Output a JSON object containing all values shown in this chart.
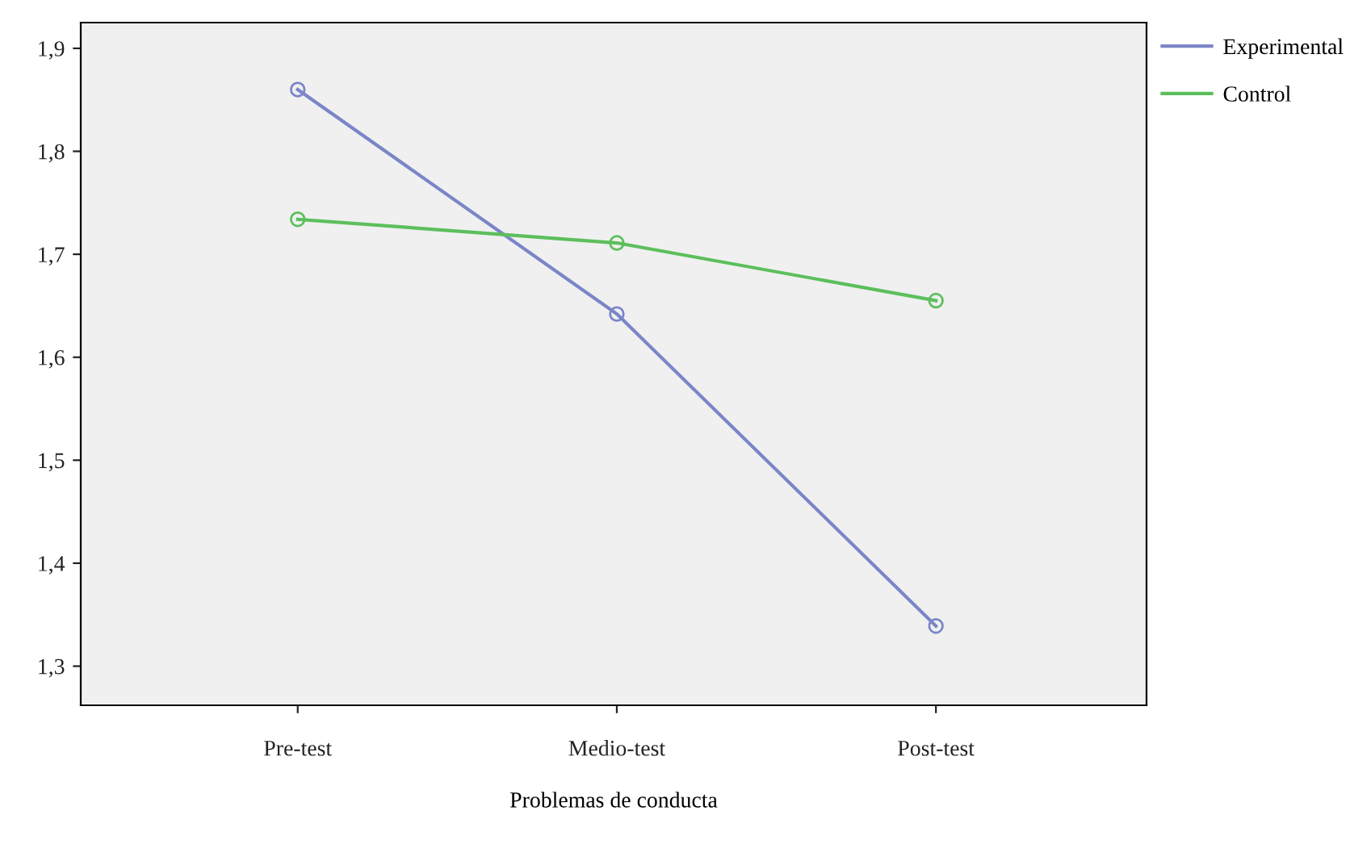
{
  "chart_data": {
    "type": "line",
    "xlabel": "Problemas de conducta",
    "categories": [
      "Pre-test",
      "Medio-test",
      "Post-test"
    ],
    "series": [
      {
        "name": "Experimental",
        "color": "#7b86c8",
        "values": [
          1.86,
          1.642,
          1.339
        ]
      },
      {
        "name": "Control",
        "color": "#5cbf5c",
        "values": [
          1.734,
          1.711,
          1.655
        ]
      }
    ],
    "ylim": [
      1.262,
      1.925
    ],
    "yticks": [
      {
        "value": 1.3,
        "label": "1,3"
      },
      {
        "value": 1.4,
        "label": "1,4"
      },
      {
        "value": 1.5,
        "label": "1,5"
      },
      {
        "value": 1.6,
        "label": "1,6"
      },
      {
        "value": 1.7,
        "label": "1,7"
      },
      {
        "value": 1.8,
        "label": "1,8"
      },
      {
        "value": 1.9,
        "label": "1,9"
      }
    ],
    "marker": "circle",
    "line_style": "solid",
    "grid": false,
    "legend": "top right"
  }
}
